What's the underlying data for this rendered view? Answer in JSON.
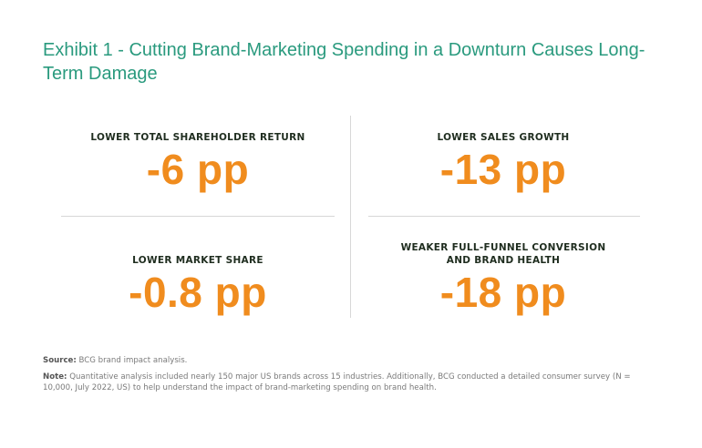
{
  "title": "Exhibit 1 - Cutting Brand-Marketing Spending in a Downturn Causes Long-Term Damage",
  "metrics": [
    {
      "label": "LOWER TOTAL SHAREHOLDER RETURN",
      "value": "-6 pp"
    },
    {
      "label": "LOWER SALES GROWTH",
      "value": "-13 pp"
    },
    {
      "label": "LOWER MARKET SHARE",
      "value": "-0.8 pp"
    },
    {
      "label": "WEAKER FULL-FUNNEL CONVERSION\nAND BRAND HEALTH",
      "value": "-18 pp"
    }
  ],
  "footer": {
    "source_label": "Source:",
    "source_text": "BCG brand impact analysis.",
    "note_label": "Note:",
    "note_text": "Quantitative analysis included nearly 150 major US brands across 15 industries. Additionally, BCG conducted a detailed consumer survey (N = 10,000, July 2022, US) to help understand the impact of brand-marketing spending on brand health."
  },
  "colors": {
    "title": "#2a9a7e",
    "value": "#f08c1e",
    "label": "#1f2d1f"
  }
}
